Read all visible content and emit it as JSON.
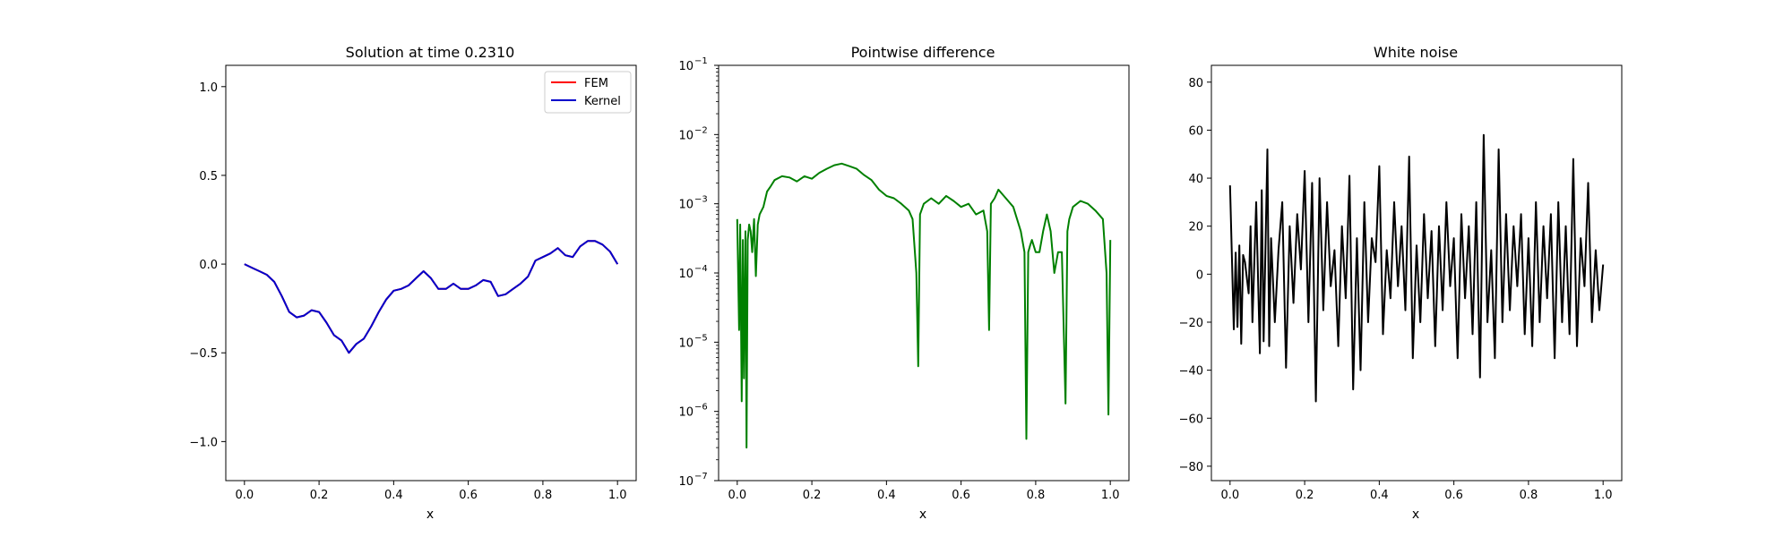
{
  "chart_data": [
    {
      "type": "line",
      "title": "Solution at time 0.2310",
      "xlabel": "x",
      "ylabel": "",
      "xlim": [
        -0.05,
        1.05
      ],
      "ylim": [
        -1.22,
        1.12
      ],
      "xticks": [
        0.0,
        0.2,
        0.4,
        0.6,
        0.8,
        1.0
      ],
      "xtick_labels": [
        "0.0",
        "0.2",
        "0.4",
        "0.6",
        "0.8",
        "1.0"
      ],
      "yticks": [
        -1.0,
        -0.5,
        0.0,
        0.5,
        1.0
      ],
      "ytick_labels": [
        "−1.0",
        "−0.5",
        "0.0",
        "0.5",
        "1.0"
      ],
      "legend": "top-right",
      "x": [
        0.0,
        0.02,
        0.04,
        0.06,
        0.08,
        0.1,
        0.12,
        0.14,
        0.16,
        0.18,
        0.2,
        0.22,
        0.24,
        0.26,
        0.28,
        0.3,
        0.32,
        0.34,
        0.36,
        0.38,
        0.4,
        0.42,
        0.44,
        0.46,
        0.48,
        0.5,
        0.52,
        0.54,
        0.56,
        0.58,
        0.6,
        0.62,
        0.64,
        0.66,
        0.68,
        0.7,
        0.72,
        0.74,
        0.76,
        0.78,
        0.8,
        0.82,
        0.84,
        0.86,
        0.88,
        0.9,
        0.92,
        0.94,
        0.96,
        0.98,
        1.0
      ],
      "series": [
        {
          "name": "FEM",
          "color": "#ff0000",
          "values": [
            0.0,
            -0.02,
            -0.04,
            -0.06,
            -0.1,
            -0.18,
            -0.27,
            -0.3,
            -0.29,
            -0.26,
            -0.27,
            -0.33,
            -0.4,
            -0.43,
            -0.5,
            -0.45,
            -0.42,
            -0.35,
            -0.27,
            -0.2,
            -0.15,
            -0.14,
            -0.12,
            -0.08,
            -0.04,
            -0.08,
            -0.14,
            -0.14,
            -0.11,
            -0.14,
            -0.14,
            -0.12,
            -0.09,
            -0.1,
            -0.18,
            -0.17,
            -0.14,
            -0.11,
            -0.07,
            0.02,
            0.04,
            0.06,
            0.09,
            0.05,
            0.04,
            0.1,
            0.13,
            0.13,
            0.11,
            0.07,
            0.0
          ]
        },
        {
          "name": "Kernel",
          "color": "#0000cc",
          "values": [
            0.0,
            -0.02,
            -0.04,
            -0.06,
            -0.1,
            -0.18,
            -0.27,
            -0.3,
            -0.29,
            -0.26,
            -0.27,
            -0.33,
            -0.4,
            -0.43,
            -0.5,
            -0.45,
            -0.42,
            -0.35,
            -0.27,
            -0.2,
            -0.15,
            -0.14,
            -0.12,
            -0.08,
            -0.04,
            -0.08,
            -0.14,
            -0.14,
            -0.11,
            -0.14,
            -0.14,
            -0.12,
            -0.09,
            -0.1,
            -0.18,
            -0.17,
            -0.14,
            -0.11,
            -0.07,
            0.02,
            0.04,
            0.06,
            0.09,
            0.05,
            0.04,
            0.1,
            0.13,
            0.13,
            0.11,
            0.07,
            0.0
          ]
        }
      ]
    },
    {
      "type": "line",
      "title": "Pointwise difference",
      "xlabel": "x",
      "ylabel": "",
      "yscale": "log",
      "xlim": [
        -0.05,
        1.05
      ],
      "ylim": [
        1e-07,
        0.1
      ],
      "xticks": [
        0.0,
        0.2,
        0.4,
        0.6,
        0.8,
        1.0
      ],
      "xtick_labels": [
        "0.0",
        "0.2",
        "0.4",
        "0.6",
        "0.8",
        "1.0"
      ],
      "yticks": [
        1e-07,
        1e-06,
        1e-05,
        0.0001,
        0.001,
        0.01,
        0.1
      ],
      "ytick_labels": [
        "10",
        "10",
        "10",
        "10",
        "10",
        "10",
        "10"
      ],
      "ytick_exponents": [
        "−7",
        "−6",
        "−5",
        "−4",
        "−3",
        "−2",
        "−1"
      ],
      "series": [
        {
          "name": "",
          "color": "#008000",
          "x": [
            0.0,
            0.005,
            0.008,
            0.012,
            0.015,
            0.018,
            0.022,
            0.025,
            0.028,
            0.032,
            0.036,
            0.04,
            0.045,
            0.05,
            0.055,
            0.06,
            0.07,
            0.08,
            0.09,
            0.1,
            0.12,
            0.14,
            0.16,
            0.18,
            0.2,
            0.22,
            0.24,
            0.26,
            0.28,
            0.3,
            0.32,
            0.34,
            0.36,
            0.38,
            0.4,
            0.42,
            0.44,
            0.46,
            0.47,
            0.48,
            0.485,
            0.49,
            0.5,
            0.52,
            0.54,
            0.56,
            0.58,
            0.6,
            0.62,
            0.64,
            0.66,
            0.67,
            0.675,
            0.68,
            0.69,
            0.7,
            0.72,
            0.74,
            0.76,
            0.77,
            0.775,
            0.78,
            0.785,
            0.79,
            0.8,
            0.81,
            0.82,
            0.83,
            0.84,
            0.85,
            0.86,
            0.87,
            0.88,
            0.885,
            0.89,
            0.9,
            0.92,
            0.94,
            0.96,
            0.98,
            0.99,
            0.995,
            1.0
          ],
          "values": [
            0.0006,
            1.5e-05,
            0.0005,
            1.4e-06,
            0.0003,
            3e-06,
            0.0004,
            3e-07,
            0.0003,
            0.0005,
            0.0004,
            0.0002,
            0.0006,
            9e-05,
            0.0005,
            0.0007,
            0.0009,
            0.0015,
            0.0018,
            0.0022,
            0.0025,
            0.0024,
            0.0021,
            0.0025,
            0.0023,
            0.0028,
            0.0032,
            0.0036,
            0.0038,
            0.0035,
            0.0032,
            0.0026,
            0.0022,
            0.0016,
            0.0013,
            0.0012,
            0.001,
            0.0008,
            0.0006,
            0.0001,
            4.5e-06,
            0.0007,
            0.001,
            0.0012,
            0.001,
            0.0013,
            0.0011,
            0.0009,
            0.001,
            0.0007,
            0.0008,
            0.0004,
            1.5e-05,
            0.001,
            0.0012,
            0.0016,
            0.0012,
            0.0009,
            0.0004,
            0.0002,
            4e-07,
            0.0002,
            0.00025,
            0.0003,
            0.0002,
            0.0002,
            0.0004,
            0.0007,
            0.0004,
            0.0001,
            0.0002,
            0.0002,
            1.3e-06,
            0.0004,
            0.0006,
            0.0009,
            0.0011,
            0.001,
            0.0008,
            0.0006,
            0.0001,
            9e-07,
            0.0003
          ]
        }
      ]
    },
    {
      "type": "line",
      "title": "White noise",
      "xlabel": "x",
      "ylabel": "",
      "xlim": [
        -0.05,
        1.05
      ],
      "ylim": [
        -86,
        87
      ],
      "xticks": [
        0.0,
        0.2,
        0.4,
        0.6,
        0.8,
        1.0
      ],
      "xtick_labels": [
        "0.0",
        "0.2",
        "0.4",
        "0.6",
        "0.8",
        "1.0"
      ],
      "yticks": [
        -80,
        -60,
        -40,
        -20,
        0,
        20,
        40,
        60,
        80
      ],
      "ytick_labels": [
        "−80",
        "−60",
        "−40",
        "−20",
        "0",
        "20",
        "40",
        "60",
        "80"
      ],
      "series": [
        {
          "name": "",
          "color": "#000000",
          "x": [
            0.0,
            0.01,
            0.015,
            0.02,
            0.025,
            0.03,
            0.035,
            0.04,
            0.05,
            0.055,
            0.06,
            0.07,
            0.08,
            0.085,
            0.09,
            0.1,
            0.105,
            0.11,
            0.12,
            0.13,
            0.14,
            0.15,
            0.16,
            0.17,
            0.18,
            0.19,
            0.2,
            0.21,
            0.22,
            0.23,
            0.24,
            0.25,
            0.26,
            0.27,
            0.28,
            0.29,
            0.3,
            0.31,
            0.32,
            0.33,
            0.34,
            0.35,
            0.36,
            0.37,
            0.38,
            0.39,
            0.4,
            0.41,
            0.42,
            0.43,
            0.44,
            0.45,
            0.46,
            0.47,
            0.48,
            0.49,
            0.5,
            0.51,
            0.52,
            0.53,
            0.54,
            0.55,
            0.56,
            0.57,
            0.58,
            0.59,
            0.6,
            0.61,
            0.62,
            0.63,
            0.64,
            0.65,
            0.66,
            0.67,
            0.68,
            0.69,
            0.7,
            0.71,
            0.72,
            0.73,
            0.74,
            0.75,
            0.76,
            0.77,
            0.78,
            0.79,
            0.8,
            0.81,
            0.82,
            0.83,
            0.84,
            0.85,
            0.86,
            0.87,
            0.88,
            0.89,
            0.9,
            0.91,
            0.92,
            0.93,
            0.94,
            0.95,
            0.96,
            0.97,
            0.98,
            0.99,
            1.0
          ],
          "values": [
            37,
            -23,
            9,
            -22,
            12,
            -29,
            8,
            5,
            -8,
            20,
            -20,
            30,
            -33,
            35,
            -28,
            52,
            -30,
            15,
            -20,
            10,
            30,
            -39,
            20,
            -12,
            25,
            2,
            43,
            -20,
            38,
            -53,
            40,
            -15,
            30,
            -5,
            10,
            -30,
            20,
            -10,
            41,
            -48,
            15,
            -40,
            30,
            -20,
            15,
            5,
            45,
            -25,
            10,
            -10,
            30,
            -5,
            20,
            -15,
            49,
            -35,
            12,
            -20,
            25,
            -10,
            18,
            -30,
            20,
            -15,
            30,
            -5,
            15,
            -35,
            25,
            -10,
            20,
            -25,
            30,
            -43,
            58,
            -20,
            10,
            -35,
            52,
            -20,
            25,
            -15,
            20,
            -5,
            25,
            -25,
            15,
            -30,
            30,
            -20,
            20,
            -10,
            25,
            -35,
            30,
            -20,
            20,
            -25,
            48,
            -30,
            15,
            -5,
            38,
            -20,
            10,
            -15,
            4
          ]
        }
      ]
    }
  ],
  "legend_entries": [
    {
      "label": "FEM",
      "color": "#ff0000"
    },
    {
      "label": "Kernel",
      "color": "#0000cc"
    }
  ]
}
